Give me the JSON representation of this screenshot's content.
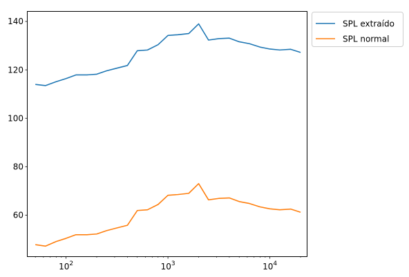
{
  "chart_data": {
    "type": "line",
    "xscale": "log",
    "xlim": [
      42,
      23000
    ],
    "ylim": [
      43,
      144
    ],
    "xticks": [
      {
        "value": 100,
        "base": "10",
        "exp": "2"
      },
      {
        "value": 1000,
        "base": "10",
        "exp": "3"
      },
      {
        "value": 10000,
        "base": "10",
        "exp": "4"
      }
    ],
    "yticks": [
      60,
      80,
      100,
      120,
      140
    ],
    "legend": {
      "placement": "outside-top-right"
    },
    "grid": false,
    "x": [
      50,
      63,
      80,
      100,
      125,
      160,
      200,
      250,
      315,
      400,
      500,
      630,
      800,
      1000,
      1250,
      1600,
      2000,
      2500,
      3150,
      4000,
      5000,
      6300,
      8000,
      10000,
      12500,
      16000,
      20000
    ],
    "series": [
      {
        "name": "SPL extraído",
        "color": "#1f77b4",
        "values": [
          114.0,
          113.5,
          115.1,
          116.4,
          117.9,
          117.9,
          118.2,
          119.6,
          120.7,
          121.8,
          127.9,
          128.2,
          130.4,
          134.2,
          134.5,
          135.0,
          139.0,
          132.3,
          132.9,
          133.1,
          131.6,
          130.8,
          129.4,
          128.6,
          128.2,
          128.5,
          127.2
        ]
      },
      {
        "name": "SPL normal",
        "color": "#ff7f0e",
        "values": [
          47.8,
          47.2,
          49.1,
          50.4,
          51.9,
          51.9,
          52.2,
          53.6,
          54.7,
          55.8,
          61.9,
          62.2,
          64.4,
          68.2,
          68.5,
          69.0,
          73.0,
          66.3,
          66.9,
          67.1,
          65.6,
          64.8,
          63.4,
          62.6,
          62.2,
          62.5,
          61.2
        ]
      }
    ]
  }
}
